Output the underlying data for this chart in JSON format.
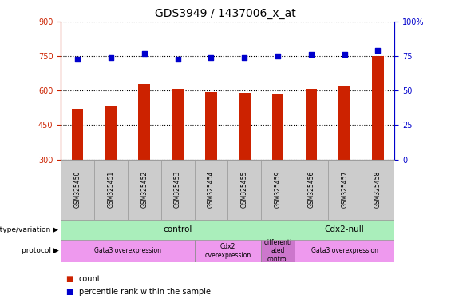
{
  "title": "GDS3949 / 1437006_x_at",
  "samples": [
    "GSM325450",
    "GSM325451",
    "GSM325452",
    "GSM325453",
    "GSM325454",
    "GSM325455",
    "GSM325459",
    "GSM325456",
    "GSM325457",
    "GSM325458"
  ],
  "counts": [
    520,
    535,
    630,
    607,
    593,
    592,
    582,
    607,
    623,
    752
  ],
  "percentile_ranks": [
    73,
    74,
    77,
    73,
    74,
    74,
    75,
    76,
    76,
    79
  ],
  "ylim_left": [
    300,
    900
  ],
  "ylim_right": [
    0,
    100
  ],
  "yticks_left": [
    300,
    450,
    600,
    750,
    900
  ],
  "yticks_right": [
    0,
    25,
    50,
    75,
    100
  ],
  "bar_color": "#CC2200",
  "dot_color": "#0000CC",
  "genotype_groups": [
    {
      "label": "control",
      "start": 0,
      "end": 6,
      "color": "#AAEEBB"
    },
    {
      "label": "Cdx2-null",
      "start": 7,
      "end": 9,
      "color": "#AAEEBB"
    }
  ],
  "protocol_groups": [
    {
      "label": "Gata3 overexpression",
      "start": 0,
      "end": 3,
      "color": "#EE99EE"
    },
    {
      "label": "Cdx2\noverexpression",
      "start": 4,
      "end": 5,
      "color": "#EE99EE"
    },
    {
      "label": "differenti\nated\ncontrol",
      "start": 6,
      "end": 6,
      "color": "#CC77CC"
    },
    {
      "label": "Gata3 overexpression",
      "start": 7,
      "end": 9,
      "color": "#EE99EE"
    }
  ],
  "left_axis_color": "#CC2200",
  "right_axis_color": "#0000CC",
  "sample_box_color": "#CCCCCC",
  "sample_box_edge": "#999999",
  "bar_width": 0.35
}
